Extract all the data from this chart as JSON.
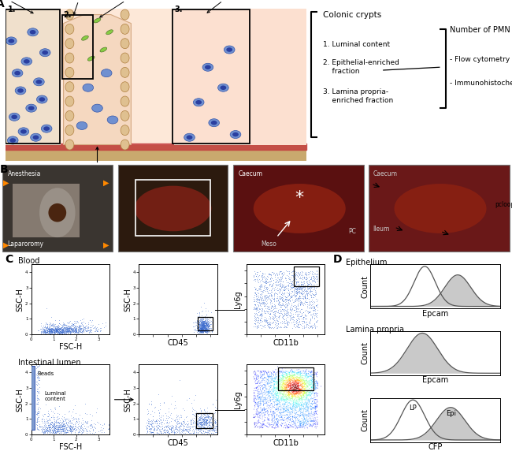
{
  "panel_A": {
    "label": "A",
    "title_text": "Colonic crypts",
    "items": [
      "1. Luminal content",
      "2. Epithelial-enriched\n    fraction",
      "3. Lamina propria-\n    enriched fraction"
    ],
    "right_title": "Number of PMN",
    "right_items": [
      "- Flow cytometry",
      "- Immunohistochemistry"
    ]
  },
  "panel_B": {
    "label": "B",
    "photo1_labels": [
      "Anesthesia",
      "Laparoromy"
    ],
    "photo3_labels": [
      "Caecum",
      "PC",
      "Meso"
    ],
    "photo4_labels": [
      "Caecum",
      "Ileum",
      "pcloop"
    ]
  },
  "panel_C": {
    "label": "C",
    "top_label": "Blood",
    "bottom_label": "Intestinal lumen",
    "plots": [
      {
        "xlabel": "FSC-H",
        "ylabel": "SSC-H"
      },
      {
        "xlabel": "CD45",
        "ylabel": "SSC-H"
      },
      {
        "xlabel": "CD11b",
        "ylabel": "Ly6g"
      },
      {
        "xlabel": "FSC-H",
        "ylabel": "SSC-H"
      },
      {
        "xlabel": "CD45",
        "ylabel": "SSC-H"
      },
      {
        "xlabel": "CD11b",
        "ylabel": "Ly6g"
      }
    ],
    "beads_label": "Beads",
    "luminal_label": "Luminal\ncontent"
  },
  "panel_D": {
    "label": "D",
    "plots": [
      {
        "title": "Epithelium",
        "xlabel": "Epcam",
        "ylabel": "Count"
      },
      {
        "title": "Lamina propria",
        "xlabel": "Epcam",
        "ylabel": "Count"
      },
      {
        "title": "",
        "xlabel": "CFP",
        "ylabel": "Count"
      }
    ],
    "lp_label": "LP",
    "epi_label": "Epi"
  },
  "bg_color": "#ffffff",
  "scatter_blue": "#3a6acd",
  "hist_fill": "#c0c0c0",
  "hist_edge": "#555555",
  "font_panel": 10,
  "font_axis": 7,
  "font_tick": 5
}
